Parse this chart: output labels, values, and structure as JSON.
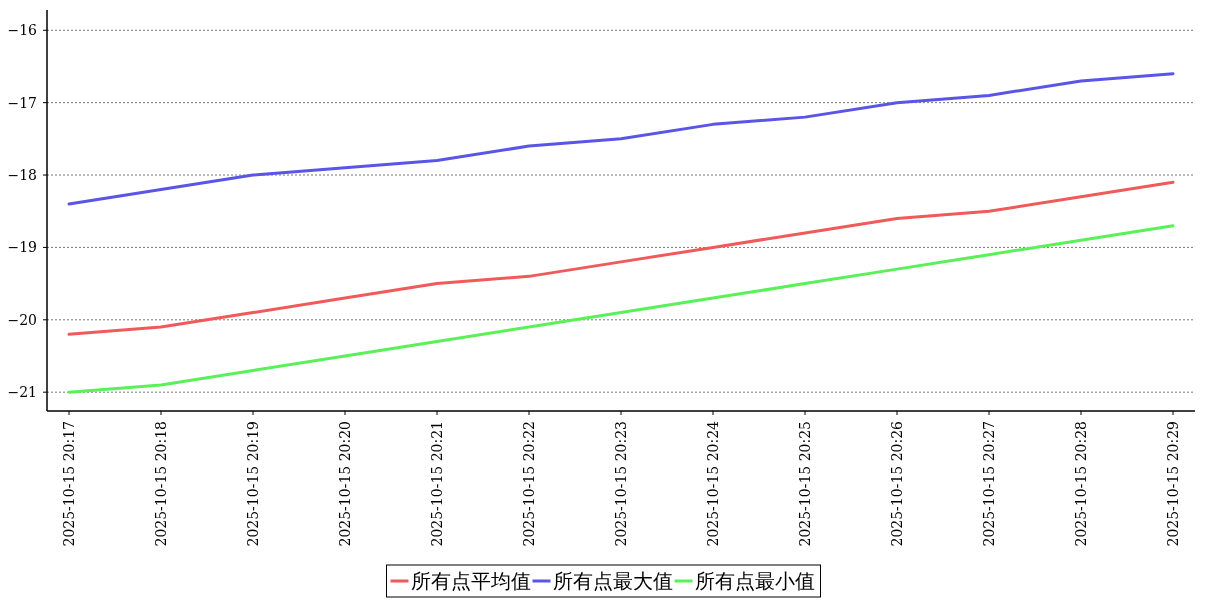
{
  "chart_data": {
    "type": "line",
    "categories": [
      "2025-10-15 20:17",
      "2025-10-15 20:18",
      "2025-10-15 20:19",
      "2025-10-15 20:20",
      "2025-10-15 20:21",
      "2025-10-15 20:22",
      "2025-10-15 20:23",
      "2025-10-15 20:24",
      "2025-10-15 20:25",
      "2025-10-15 20:26",
      "2025-10-15 20:27",
      "2025-10-15 20:28",
      "2025-10-15 20:29"
    ],
    "series": [
      {
        "name": "所有点平均值",
        "color": "#f05a5a",
        "values": [
          -20.2,
          -20.1,
          -19.9,
          -19.7,
          -19.5,
          -19.4,
          -19.2,
          -19.0,
          -18.8,
          -18.6,
          -18.5,
          -18.3,
          -18.1
        ]
      },
      {
        "name": "所有点最大值",
        "color": "#5a55e6",
        "values": [
          -18.4,
          -18.2,
          -18.0,
          -17.9,
          -17.8,
          -17.6,
          -17.5,
          -17.3,
          -17.2,
          -17.0,
          -16.9,
          -16.7,
          -16.6
        ]
      },
      {
        "name": "所有点最小值",
        "color": "#5af05a",
        "values": [
          -21.0,
          -20.9,
          -20.7,
          -20.5,
          -20.3,
          -20.1,
          -19.9,
          -19.7,
          -19.5,
          -19.3,
          -19.1,
          -18.9,
          -18.7
        ]
      }
    ],
    "ylim": [
      -21.26,
      -15.72
    ],
    "yticks": [
      -21,
      -20,
      -19,
      -18,
      -17,
      -16
    ],
    "grid": "y",
    "legend": "bottom"
  }
}
